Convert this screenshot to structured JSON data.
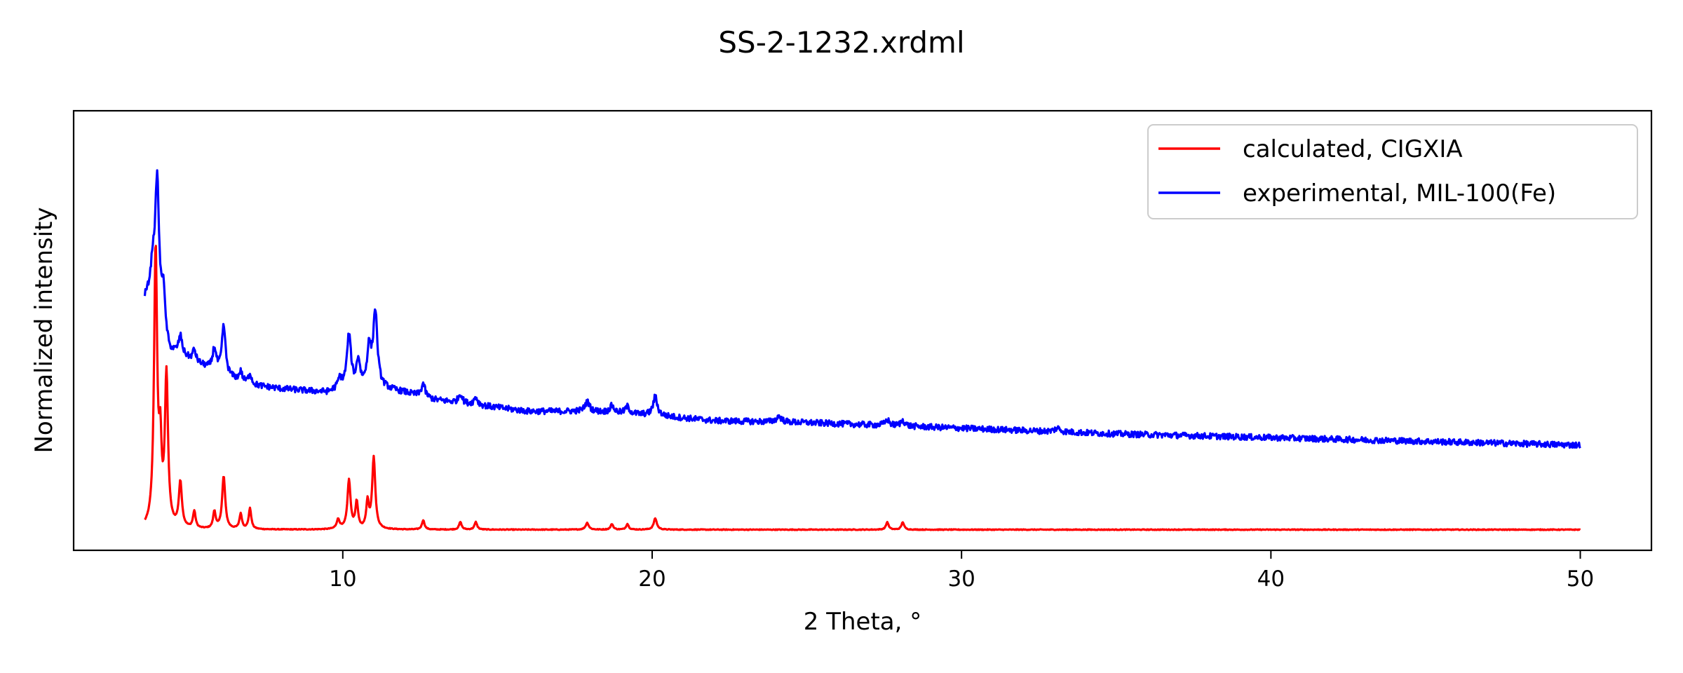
{
  "chart_data": {
    "type": "line",
    "title": "SS-2-1232.xrdml",
    "xlabel": "2 Theta, °",
    "ylabel": "Normalized intensity",
    "xlim": [
      1.3,
      52.3
    ],
    "ylim": [
      -0.05,
      1.12
    ],
    "xticks": [
      10,
      20,
      30,
      40,
      50
    ],
    "xtick_labels": [
      "10",
      "20",
      "30",
      "40",
      "50"
    ],
    "yticks_visible": false,
    "grid": false,
    "legend_position": "top-right",
    "series": [
      {
        "name": "calculated, CIGXIA",
        "color": "#ff0000",
        "baseline": 0.005,
        "x_range": [
          3.6,
          50.0
        ],
        "peaks": [
          {
            "x": 3.95,
            "h": 0.74,
            "w": 0.06
          },
          {
            "x": 4.1,
            "h": 0.19,
            "w": 0.05
          },
          {
            "x": 4.3,
            "h": 0.4,
            "w": 0.06
          },
          {
            "x": 4.75,
            "h": 0.12,
            "w": 0.06
          },
          {
            "x": 5.2,
            "h": 0.045,
            "w": 0.05
          },
          {
            "x": 5.85,
            "h": 0.045,
            "w": 0.05
          },
          {
            "x": 6.15,
            "h": 0.14,
            "w": 0.06
          },
          {
            "x": 6.7,
            "h": 0.04,
            "w": 0.05
          },
          {
            "x": 7.0,
            "h": 0.055,
            "w": 0.05
          },
          {
            "x": 9.85,
            "h": 0.025,
            "w": 0.06
          },
          {
            "x": 10.2,
            "h": 0.13,
            "w": 0.06
          },
          {
            "x": 10.45,
            "h": 0.07,
            "w": 0.05
          },
          {
            "x": 10.8,
            "h": 0.07,
            "w": 0.05
          },
          {
            "x": 11.0,
            "h": 0.19,
            "w": 0.06
          },
          {
            "x": 12.6,
            "h": 0.025,
            "w": 0.05
          },
          {
            "x": 13.8,
            "h": 0.02,
            "w": 0.05
          },
          {
            "x": 14.3,
            "h": 0.02,
            "w": 0.05
          },
          {
            "x": 17.9,
            "h": 0.018,
            "w": 0.06
          },
          {
            "x": 18.7,
            "h": 0.015,
            "w": 0.05
          },
          {
            "x": 19.2,
            "h": 0.015,
            "w": 0.05
          },
          {
            "x": 20.1,
            "h": 0.03,
            "w": 0.06
          },
          {
            "x": 27.6,
            "h": 0.02,
            "w": 0.05
          },
          {
            "x": 28.1,
            "h": 0.02,
            "w": 0.05
          }
        ]
      },
      {
        "name": "experimental, MIL-100(Fe)",
        "color": "#0000ff",
        "x_range": [
          3.6,
          50.0
        ],
        "background": [
          [
            3.6,
            0.62
          ],
          [
            3.9,
            0.66
          ],
          [
            4.4,
            0.48
          ],
          [
            5.0,
            0.46
          ],
          [
            6.0,
            0.42
          ],
          [
            7.0,
            0.39
          ],
          [
            8.0,
            0.38
          ],
          [
            9.5,
            0.37
          ],
          [
            10.0,
            0.38
          ],
          [
            11.3,
            0.38
          ],
          [
            12.0,
            0.37
          ],
          [
            13.0,
            0.35
          ],
          [
            14.0,
            0.34
          ],
          [
            15.0,
            0.33
          ],
          [
            16.0,
            0.32
          ],
          [
            17.0,
            0.32
          ],
          [
            18.0,
            0.32
          ],
          [
            19.0,
            0.315
          ],
          [
            20.0,
            0.31
          ],
          [
            22.0,
            0.295
          ],
          [
            25.0,
            0.29
          ],
          [
            30.0,
            0.275
          ],
          [
            35.0,
            0.26
          ],
          [
            40.0,
            0.25
          ],
          [
            45.0,
            0.24
          ],
          [
            50.0,
            0.23
          ]
        ],
        "peaks": [
          {
            "x": 3.85,
            "h": 0.05,
            "w": 0.06
          },
          {
            "x": 4.0,
            "h": 0.32,
            "w": 0.07
          },
          {
            "x": 4.2,
            "h": 0.1,
            "w": 0.05
          },
          {
            "x": 4.75,
            "h": 0.05,
            "w": 0.07
          },
          {
            "x": 5.2,
            "h": 0.03,
            "w": 0.06
          },
          {
            "x": 5.85,
            "h": 0.06,
            "w": 0.07
          },
          {
            "x": 6.15,
            "h": 0.13,
            "w": 0.07
          },
          {
            "x": 6.7,
            "h": 0.025,
            "w": 0.06
          },
          {
            "x": 7.0,
            "h": 0.03,
            "w": 0.06
          },
          {
            "x": 9.9,
            "h": 0.025,
            "w": 0.07
          },
          {
            "x": 10.2,
            "h": 0.14,
            "w": 0.08
          },
          {
            "x": 10.5,
            "h": 0.07,
            "w": 0.07
          },
          {
            "x": 10.85,
            "h": 0.1,
            "w": 0.08
          },
          {
            "x": 11.05,
            "h": 0.2,
            "w": 0.08
          },
          {
            "x": 12.6,
            "h": 0.035,
            "w": 0.07
          },
          {
            "x": 13.8,
            "h": 0.025,
            "w": 0.07
          },
          {
            "x": 14.3,
            "h": 0.02,
            "w": 0.07
          },
          {
            "x": 17.9,
            "h": 0.025,
            "w": 0.09
          },
          {
            "x": 18.7,
            "h": 0.018,
            "w": 0.08
          },
          {
            "x": 19.2,
            "h": 0.018,
            "w": 0.08
          },
          {
            "x": 20.1,
            "h": 0.05,
            "w": 0.08
          },
          {
            "x": 24.1,
            "h": 0.015,
            "w": 0.1
          },
          {
            "x": 27.6,
            "h": 0.015,
            "w": 0.08
          },
          {
            "x": 28.1,
            "h": 0.015,
            "w": 0.08
          },
          {
            "x": 33.1,
            "h": 0.01,
            "w": 0.1
          }
        ],
        "noise_amplitude": 0.008
      }
    ]
  }
}
